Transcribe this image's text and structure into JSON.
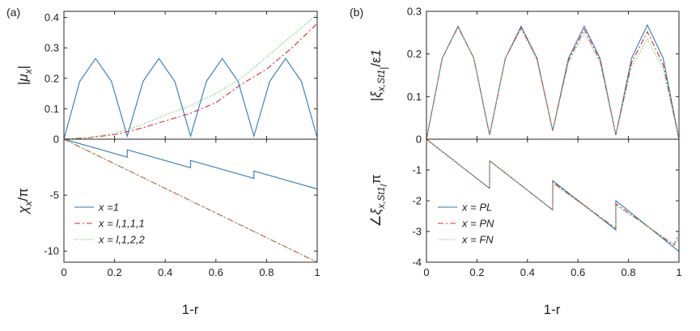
{
  "chart_data": [
    {
      "panel": "(a)",
      "type": "line",
      "title": "",
      "xlabel": "1-r",
      "x_ticks": [
        "0",
        "0.2",
        "0.4",
        "0.6",
        "0.8",
        "1"
      ],
      "xlim": [
        0,
        1
      ],
      "top": {
        "ylabel": "|μx|",
        "ylim": [
          0,
          0.42
        ],
        "y_ticks": [
          "0",
          "0.1",
          "0.2",
          "0.3",
          "0.4"
        ],
        "series": [
          {
            "name": "x =1",
            "color": "#2b7bba",
            "style": "solid",
            "x": [
              0,
              0.0625,
              0.125,
              0.1875,
              0.25,
              0.3125,
              0.375,
              0.4375,
              0.5,
              0.5625,
              0.625,
              0.6875,
              0.75,
              0.8125,
              0.875,
              0.9375,
              1.0
            ],
            "y": [
              0,
              0.19,
              0.265,
              0.19,
              0.01,
              0.19,
              0.265,
              0.19,
              0.01,
              0.19,
              0.265,
              0.19,
              0.01,
              0.19,
              0.265,
              0.19,
              0.005
            ]
          },
          {
            "name": "x = l,1,1,1",
            "color": "#e8262b",
            "style": "dashdot",
            "x": [
              0,
              0.1,
              0.2,
              0.3,
              0.4,
              0.5,
              0.6,
              0.7,
              0.8,
              0.9,
              1.0
            ],
            "y": [
              0,
              0.005,
              0.015,
              0.035,
              0.06,
              0.085,
              0.12,
              0.18,
              0.23,
              0.3,
              0.38
            ]
          },
          {
            "name": "x = l,1,2,2",
            "color": "#6cc96c",
            "style": "dotted",
            "x": [
              0,
              0.1,
              0.2,
              0.3,
              0.4,
              0.5,
              0.6,
              0.7,
              0.8,
              0.9,
              1.0
            ],
            "y": [
              0,
              0.006,
              0.02,
              0.045,
              0.08,
              0.11,
              0.15,
              0.2,
              0.27,
              0.34,
              0.41
            ]
          }
        ]
      },
      "bottom": {
        "ylabel": "χx/π",
        "ylim": [
          -11,
          0
        ],
        "y_ticks": [
          "0",
          "-5",
          "-10"
        ],
        "y_tick_values": [
          0,
          -5,
          -10
        ],
        "series": [
          {
            "name": "x =1",
            "color": "#2b7bba",
            "style": "solid",
            "x": [
              0,
              0.25,
              0.25,
              0.5,
              0.5,
              0.75,
              0.75,
              1.0
            ],
            "y": [
              0,
              -1.6,
              -0.95,
              -2.55,
              -1.9,
              -3.5,
              -2.85,
              -4.45
            ]
          },
          {
            "name": "x = l,1,1,1",
            "color": "#e8262b",
            "style": "dashdot",
            "x": [
              0,
              0.25,
              0.5,
              0.75,
              1.0
            ],
            "y": [
              0,
              -2.75,
              -5.5,
              -8.25,
              -11.0
            ]
          },
          {
            "name": "x = l,1,2,2",
            "color": "#6cc96c",
            "style": "dotted",
            "x": [
              0,
              0.25,
              0.5,
              0.75,
              1.0
            ],
            "y": [
              0,
              -2.75,
              -5.5,
              -8.25,
              -11.0
            ]
          }
        ],
        "legend_position": "bottom-left"
      }
    },
    {
      "panel": "(b)",
      "type": "line",
      "title": "",
      "xlabel": "1-r",
      "x_ticks": [
        "0",
        "0.2",
        "0.4",
        "0.6",
        "0.8",
        "1"
      ],
      "xlim": [
        0,
        1
      ],
      "top": {
        "ylabel": "|ξx,St1|/ε1",
        "ylim": [
          0,
          0.3
        ],
        "y_ticks": [
          "0",
          "0.1",
          "0.2",
          "0.3"
        ],
        "series": [
          {
            "name": "x = PL",
            "color": "#2b7bba",
            "style": "solid",
            "x": [
              0,
              0.0625,
              0.125,
              0.1875,
              0.25,
              0.3125,
              0.375,
              0.4375,
              0.5,
              0.5625,
              0.625,
              0.6875,
              0.75,
              0.8125,
              0.875,
              0.9375,
              1.0
            ],
            "y": [
              0,
              0.19,
              0.265,
              0.19,
              0.01,
              0.19,
              0.265,
              0.19,
              0.02,
              0.19,
              0.265,
              0.19,
              0.01,
              0.19,
              0.268,
              0.19,
              0.0
            ]
          },
          {
            "name": "x = PN",
            "color": "#e8262b",
            "style": "dashdot",
            "x": [
              0,
              0.0625,
              0.125,
              0.1875,
              0.25,
              0.3125,
              0.375,
              0.4375,
              0.5,
              0.5625,
              0.625,
              0.6875,
              0.75,
              0.8125,
              0.875,
              0.9375,
              1.0
            ],
            "y": [
              0,
              0.19,
              0.263,
              0.19,
              0.01,
              0.19,
              0.262,
              0.19,
              0.02,
              0.185,
              0.258,
              0.185,
              0.01,
              0.18,
              0.252,
              0.175,
              0.0
            ]
          },
          {
            "name": "x = FN",
            "color": "#6cc96c",
            "style": "dotted",
            "x": [
              0,
              0.0625,
              0.125,
              0.1875,
              0.25,
              0.3125,
              0.375,
              0.4375,
              0.5,
              0.5625,
              0.625,
              0.6875,
              0.75,
              0.8125,
              0.875,
              0.9375,
              1.0
            ],
            "y": [
              0,
              0.19,
              0.263,
              0.19,
              0.01,
              0.19,
              0.258,
              0.185,
              0.02,
              0.18,
              0.25,
              0.18,
              0.01,
              0.17,
              0.235,
              0.165,
              0.0
            ]
          }
        ]
      },
      "bottom": {
        "ylabel": "∠ξx,St1/π",
        "ylim": [
          -4,
          0
        ],
        "y_ticks": [
          "0",
          "-1",
          "-2",
          "-3",
          "-4"
        ],
        "y_tick_values": [
          0,
          -1,
          -2,
          -3,
          -4
        ],
        "series": [
          {
            "name": "x = PL",
            "color": "#2b7bba",
            "style": "solid",
            "x": [
              0,
              0.25,
              0.25,
              0.5,
              0.5,
              0.75,
              0.75,
              1.0
            ],
            "y": [
              0,
              -1.6,
              -0.7,
              -2.3,
              -1.35,
              -2.95,
              -2.0,
              -3.65
            ]
          },
          {
            "name": "x = PN",
            "color": "#e8262b",
            "style": "dashdot",
            "x": [
              0,
              0.25,
              0.25,
              0.5,
              0.5,
              0.75,
              0.75,
              0.98,
              1.0
            ],
            "y": [
              0,
              -1.6,
              -0.7,
              -2.3,
              -1.4,
              -2.9,
              -2.1,
              -3.45,
              -3.1
            ]
          },
          {
            "name": "x = FN",
            "color": "#6cc96c",
            "style": "dotted",
            "x": [
              0,
              0.25,
              0.25,
              0.5,
              0.5,
              0.75,
              0.75,
              0.98,
              1.0
            ],
            "y": [
              0,
              -1.6,
              -0.7,
              -2.3,
              -1.45,
              -2.9,
              -2.15,
              -3.4,
              -3.25
            ]
          }
        ],
        "legend_position": "bottom-left"
      }
    }
  ]
}
